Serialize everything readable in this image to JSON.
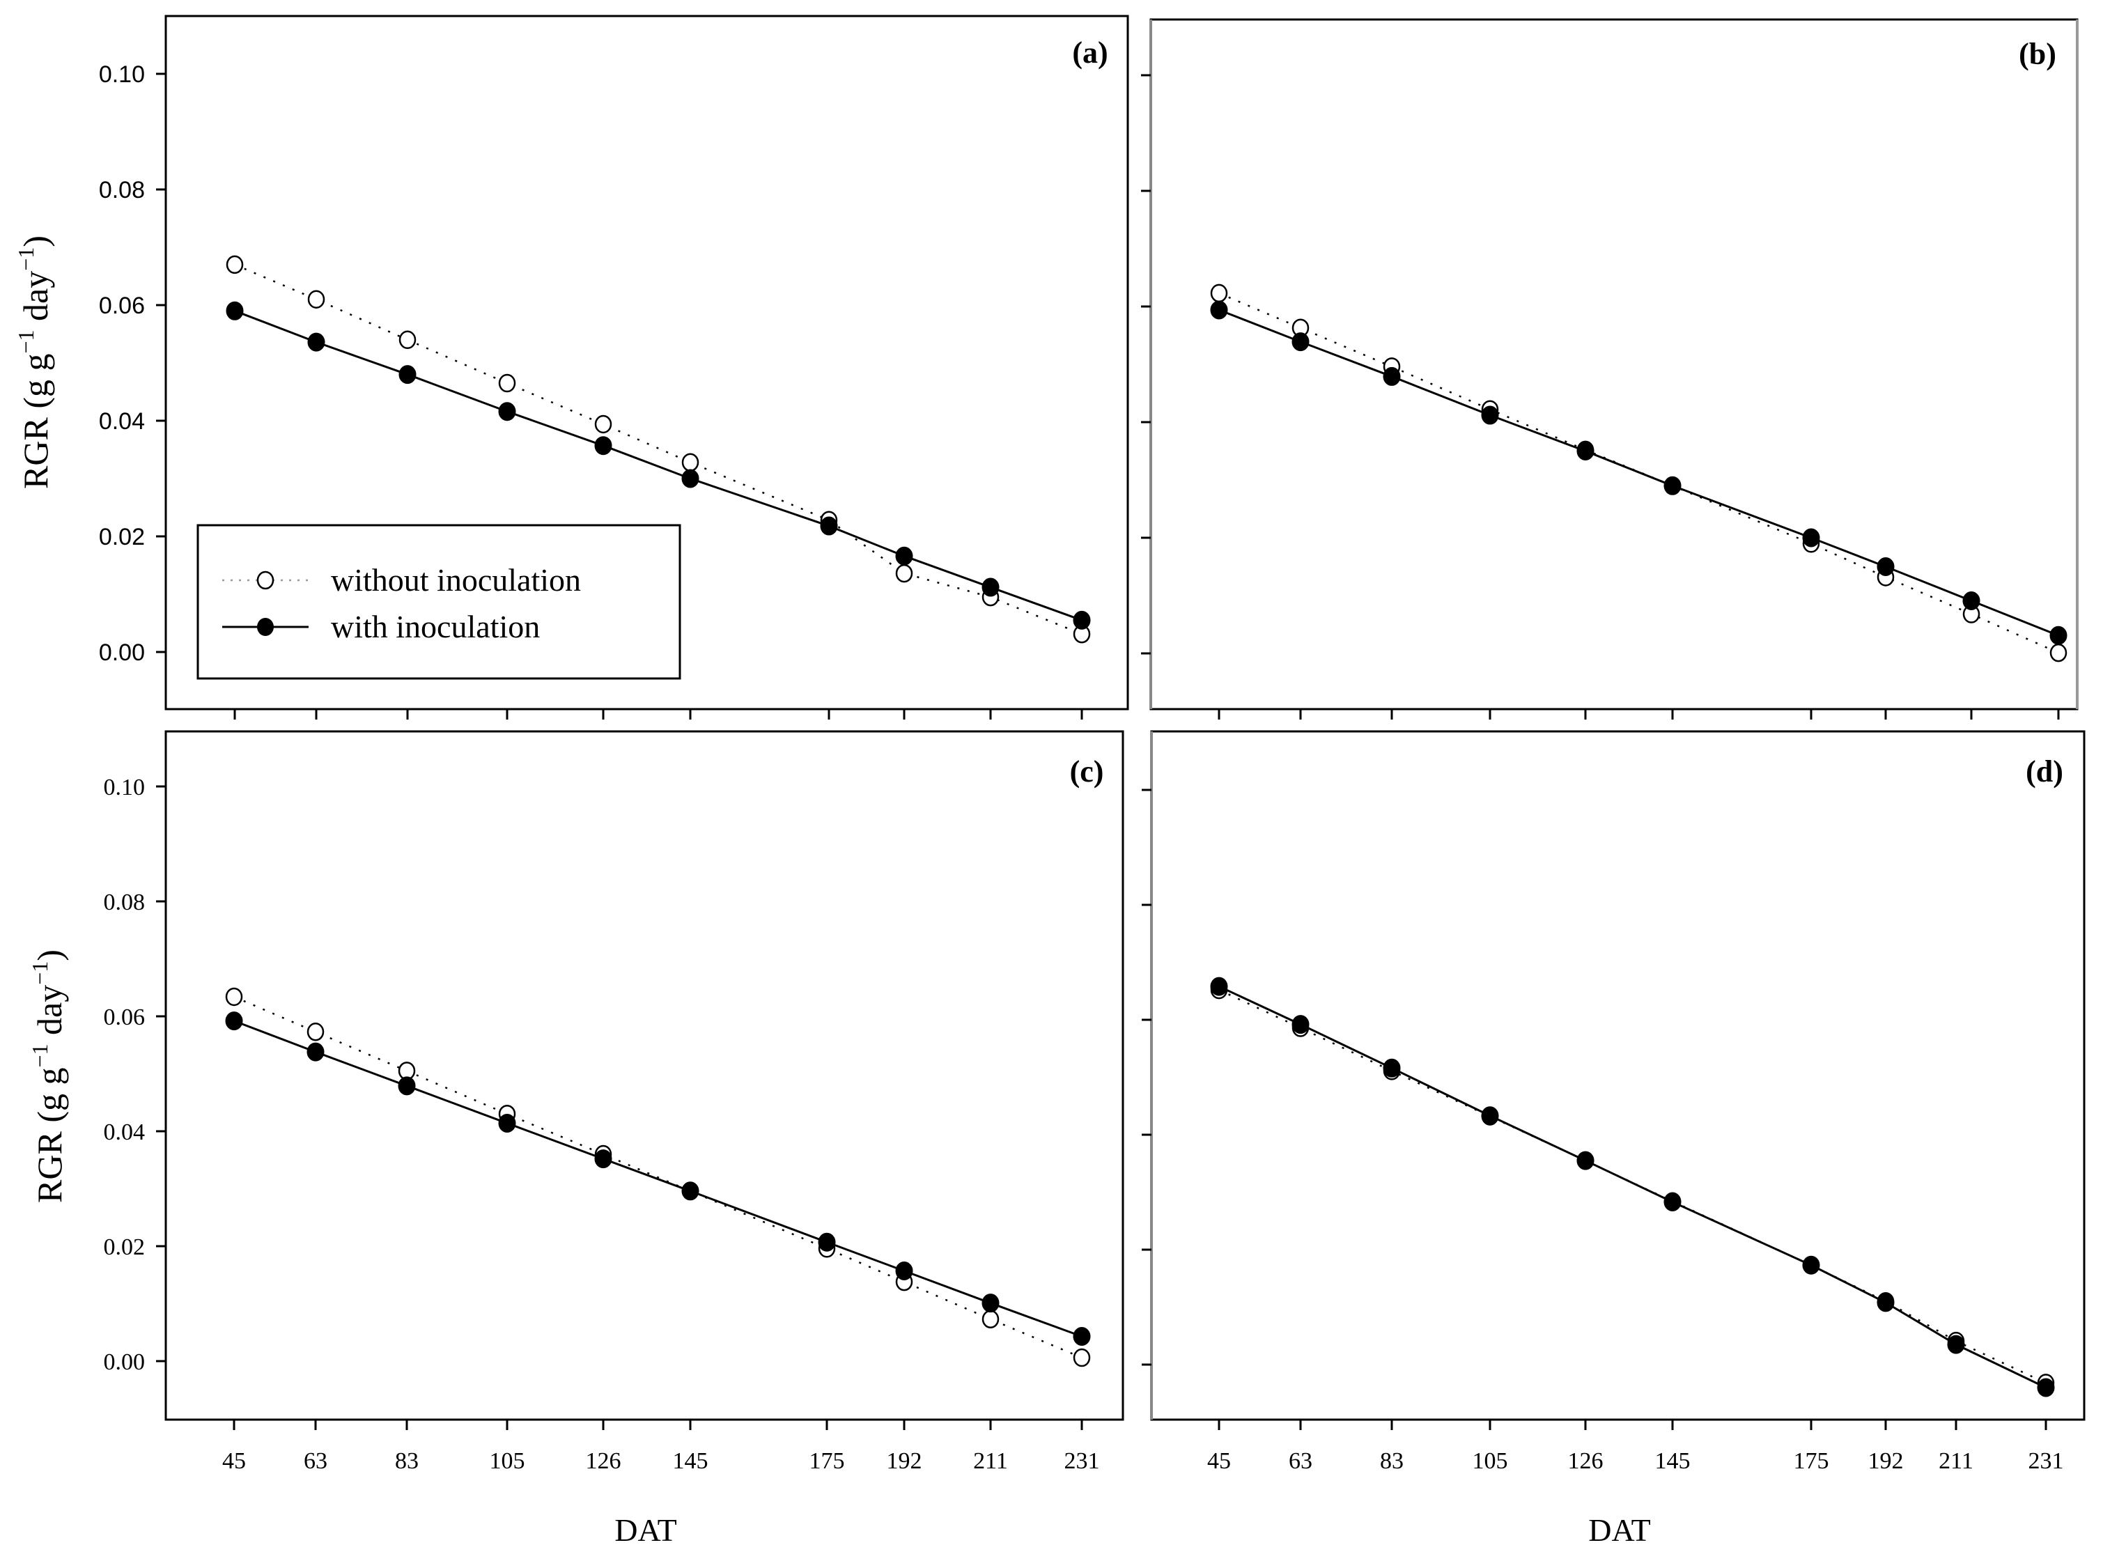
{
  "figure": {
    "y_axis_label": "RGR (g g⁻¹ day⁻¹)",
    "y_axis_label_parts": {
      "main": "RGR (g g",
      "sup1": "−1",
      "mid": " day",
      "sup2": "−1",
      "end": ")"
    },
    "x_axis_label": "DAT",
    "legend": [
      {
        "label": "without inoculation",
        "marker": "open-circle",
        "line": "dotted"
      },
      {
        "label": "with inoculation",
        "marker": "filled-circle",
        "line": "solid"
      }
    ],
    "colors": {
      "axis": "#000000",
      "marker_fill": "#000000",
      "background": "#ffffff"
    }
  },
  "chart_data": [
    {
      "type": "line",
      "panel": "(a)",
      "title": "(a)",
      "xlabel": "",
      "ylabel": "RGR (g g-1 day-1)",
      "x": [
        45,
        63,
        83,
        105,
        126,
        145,
        175,
        192,
        211,
        231
      ],
      "x_tick_labels": [
        "45",
        "63",
        "83",
        "105",
        "126",
        "145",
        "175",
        "192",
        "211",
        "231"
      ],
      "y_ticks": [
        0.0,
        0.02,
        0.04,
        0.06,
        0.08,
        0.1
      ],
      "y_tick_labels": [
        "0.00",
        "0.02",
        "0.04",
        "0.06",
        "0.08",
        "0.10"
      ],
      "ylim": [
        -0.0098,
        0.1101
      ],
      "grid": false,
      "legend_position": "lower left",
      "series": [
        {
          "name": "without inoculation",
          "values": [
            0.067,
            0.061,
            0.054,
            0.0465,
            0.0394,
            0.0328,
            0.0228,
            0.0136,
            0.0095,
            0.0031
          ]
        },
        {
          "name": "with inoculation",
          "values": [
            0.059,
            0.0536,
            0.048,
            0.0416,
            0.0357,
            0.03,
            0.0218,
            0.0166,
            0.0112,
            0.0055
          ]
        }
      ]
    },
    {
      "type": "line",
      "panel": "(b)",
      "title": "(b)",
      "xlabel": "",
      "ylabel": "",
      "x": [
        45,
        63,
        83,
        105,
        126,
        145,
        175,
        192,
        211,
        231
      ],
      "x_tick_labels": [
        "45",
        "63",
        "83",
        "105",
        "126",
        "145",
        "175",
        "192",
        "211",
        "231"
      ],
      "y_ticks": [
        0.0,
        0.02,
        0.04,
        0.06,
        0.08,
        0.1
      ],
      "y_tick_labels": [],
      "ylim": [
        -0.0098,
        0.1101
      ],
      "grid": false,
      "series": [
        {
          "name": "without inoculation",
          "values": [
            0.0623,
            0.0563,
            0.0496,
            0.0422,
            0.0352,
            0.029,
            0.019,
            0.0132,
            0.0068,
            0.0001
          ]
        },
        {
          "name": "with inoculation",
          "values": [
            0.0594,
            0.0539,
            0.0479,
            0.0412,
            0.035,
            0.029,
            0.02,
            0.015,
            0.0091,
            0.0031
          ]
        }
      ]
    },
    {
      "type": "line",
      "panel": "(c)",
      "title": "(c)",
      "xlabel": "DAT",
      "ylabel": "RGR (g g-1 day-1)",
      "x": [
        45,
        63,
        83,
        105,
        126,
        145,
        175,
        192,
        211,
        231
      ],
      "x_tick_labels": [
        "45",
        "63",
        "83",
        "105",
        "126",
        "145",
        "175",
        "192",
        "211",
        "231"
      ],
      "y_ticks": [
        0.0,
        0.02,
        0.04,
        0.06,
        0.08,
        0.1
      ],
      "y_tick_labels": [
        "0.00",
        "0.02",
        "0.04",
        "0.06",
        "0.08",
        "0.10"
      ],
      "ylim": [
        -0.0102,
        0.1097
      ],
      "grid": false,
      "series": [
        {
          "name": "without inoculation",
          "values": [
            0.0634,
            0.0573,
            0.0505,
            0.043,
            0.036,
            0.0296,
            0.0196,
            0.0138,
            0.0073,
            0.0006
          ]
        },
        {
          "name": "with inoculation",
          "values": [
            0.0592,
            0.0538,
            0.0479,
            0.0414,
            0.0352,
            0.0296,
            0.0207,
            0.0157,
            0.0101,
            0.0043
          ]
        }
      ]
    },
    {
      "type": "line",
      "panel": "(d)",
      "title": "(d)",
      "xlabel": "DAT",
      "ylabel": "",
      "x": [
        45,
        63,
        83,
        105,
        126,
        145,
        175,
        192,
        211,
        231
      ],
      "x_tick_labels": [
        "45",
        "63",
        "83",
        "105",
        "126",
        "145",
        "175",
        "192",
        "211",
        "231"
      ],
      "y_ticks": [
        0.0,
        0.02,
        0.04,
        0.06,
        0.08,
        0.1
      ],
      "y_tick_labels": [],
      "ylim": [
        -0.0096,
        0.1103
      ],
      "grid": false,
      "series": [
        {
          "name": "without inoculation",
          "values": [
            0.0652,
            0.0586,
            0.0511,
            0.0432,
            0.0355,
            0.0284,
            0.0173,
            0.011,
            0.0041,
            -0.0032
          ]
        },
        {
          "name": "with inoculation",
          "values": [
            0.0658,
            0.0592,
            0.0516,
            0.0433,
            0.0355,
            0.0283,
            0.0173,
            0.0108,
            0.0035,
            -0.004
          ]
        }
      ]
    }
  ]
}
